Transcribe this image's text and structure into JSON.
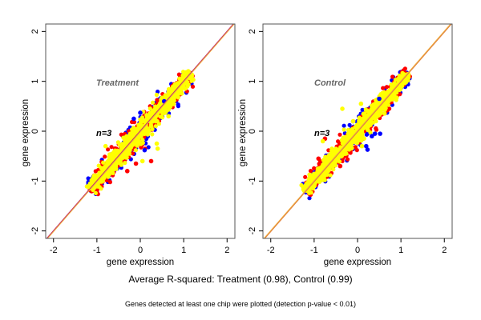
{
  "chart_data": [
    {
      "type": "scatter",
      "title": "Treatment",
      "annotation": "n=3",
      "xlabel": "gene expression",
      "ylabel": "gene expression",
      "xlim": [
        -2.18,
        2.18
      ],
      "ylim": [
        -2.15,
        2.15
      ],
      "xticks": [
        -2,
        -1,
        0,
        1,
        2
      ],
      "yticks": [
        -2,
        -1,
        0,
        1,
        2
      ],
      "reference_line": {
        "slope": 1,
        "intercept": 0,
        "colors": [
          "#c0306a",
          "#f0b040"
        ]
      },
      "trend": {
        "x_range": [
          -1.15,
          1.15
        ],
        "relation": "y≈x"
      },
      "series": [
        {
          "name": "blue",
          "color": "#0000ff"
        },
        {
          "name": "red",
          "color": "#ff0000"
        },
        {
          "name": "yellow",
          "color": "#ffff00"
        }
      ],
      "estimated_outliers": [
        {
          "series": "blue",
          "x": 0.55,
          "y": 0.6
        },
        {
          "series": "blue",
          "x": 0.0,
          "y": 0.37
        },
        {
          "series": "blue",
          "x": -0.15,
          "y": 0.25
        },
        {
          "series": "blue",
          "x": 0.1,
          "y": -0.38
        },
        {
          "series": "red",
          "x": 0.25,
          "y": -0.6
        },
        {
          "series": "red",
          "x": -0.3,
          "y": -0.8
        },
        {
          "series": "red",
          "x": -0.1,
          "y": -0.65
        },
        {
          "series": "yellow",
          "x": 0.65,
          "y": 0.3
        },
        {
          "series": "yellow",
          "x": 0.38,
          "y": -0.25
        },
        {
          "series": "yellow",
          "x": 0.4,
          "y": -0.35
        },
        {
          "series": "yellow",
          "x": 0.05,
          "y": -0.6
        },
        {
          "series": "yellow",
          "x": -0.8,
          "y": -0.3
        }
      ]
    },
    {
      "type": "scatter",
      "title": "Control",
      "annotation": "n=3",
      "xlabel": "gene expression",
      "ylabel": "gene expression",
      "xlim": [
        -2.18,
        2.18
      ],
      "ylim": [
        -2.15,
        2.15
      ],
      "xticks": [
        -2,
        -1,
        0,
        1,
        2
      ],
      "yticks": [
        -2,
        -1,
        0,
        1,
        2
      ],
      "reference_line": {
        "slope": 1,
        "intercept": 0,
        "colors": [
          "#f0b040",
          "#e08040"
        ]
      },
      "trend": {
        "x_range": [
          -1.2,
          1.15
        ],
        "relation": "y≈x"
      },
      "series": [
        {
          "name": "blue",
          "color": "#0000ff"
        },
        {
          "name": "red",
          "color": "#ff0000"
        },
        {
          "name": "yellow",
          "color": "#ffff00"
        }
      ],
      "estimated_outliers": [
        {
          "series": "blue",
          "x": 0.5,
          "y": 0.65
        },
        {
          "series": "blue",
          "x": 0.52,
          "y": -0.05
        },
        {
          "series": "blue",
          "x": 0.4,
          "y": -0.05
        },
        {
          "series": "blue",
          "x": 0.2,
          "y": -0.3
        },
        {
          "series": "blue",
          "x": 0.23,
          "y": -0.37
        },
        {
          "series": "blue",
          "x": 0.33,
          "y": -0.1
        },
        {
          "series": "red",
          "x": -0.75,
          "y": -0.15
        },
        {
          "series": "red",
          "x": -0.9,
          "y": -0.55
        },
        {
          "series": "red",
          "x": -0.4,
          "y": -0.7
        },
        {
          "series": "yellow",
          "x": -0.35,
          "y": 0.45
        },
        {
          "series": "yellow",
          "x": 0.08,
          "y": 0.55
        },
        {
          "series": "yellow",
          "x": -0.1,
          "y": 0.2
        },
        {
          "series": "yellow",
          "x": -0.8,
          "y": -0.2
        },
        {
          "series": "yellow",
          "x": 0.1,
          "y": -0.3
        }
      ]
    }
  ],
  "captions": {
    "main": "Average R-squared: Treatment (0.98), Control (0.99)",
    "sub": "Genes detected at least one chip were plotted (detection p-value < 0.01)"
  },
  "r_squared": {
    "Treatment": 0.98,
    "Control": 0.99
  }
}
